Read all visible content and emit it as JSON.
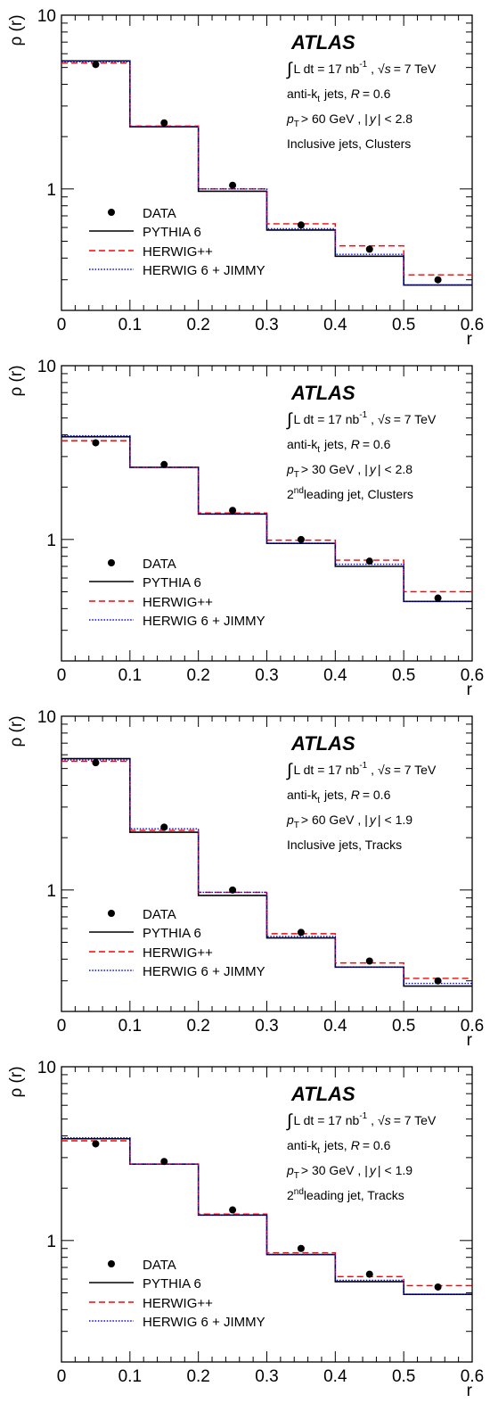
{
  "legend_labels": {
    "data": "DATA",
    "pythia": "PYTHIA 6",
    "herwigpp": "HERWIG++",
    "herwig": "HERWIG 6 + JIMMY"
  },
  "experiment": "ATLAS",
  "lumi_text": {
    "integral": "L dt = 17 nb",
    "exp": "-1",
    "sep": " ,",
    "sqrt_s": "s",
    "energy": "= 7 TeV"
  },
  "algo_text": {
    "prefix": "anti-k",
    "sub": "t",
    "jets": "jets,",
    "r_label": "R",
    "r_value": "= 0.6"
  },
  "colors": {
    "data": "#000000",
    "pythia": "#000000",
    "herwigpp": "#ff0000",
    "herwig": "#0000ff"
  },
  "chart_data": [
    {
      "type": "line",
      "title": "",
      "xlabel": "r",
      "ylabel": "ρ (r)",
      "xlim": [
        0,
        0.6
      ],
      "ylim": [
        0.2,
        10
      ],
      "yscale": "log",
      "xticks": [
        "0",
        "0.1",
        "0.2",
        "0.3",
        "0.4",
        "0.5",
        "0.6"
      ],
      "yticks": [
        "1",
        "10"
      ],
      "legend_position": "bottom-left",
      "cuts": {
        "pt": "> 60 GeV ,",
        "y": "< 2.8"
      },
      "selection": "Inclusive jets, Clusters",
      "bin_edges": [
        0,
        0.1,
        0.2,
        0.3,
        0.4,
        0.5,
        0.6
      ],
      "series": [
        {
          "name": "DATA",
          "style": "points",
          "x": [
            0.05,
            0.15,
            0.25,
            0.35,
            0.45,
            0.55
          ],
          "values": [
            5.2,
            2.4,
            1.05,
            0.62,
            0.45,
            0.3
          ]
        },
        {
          "name": "PYTHIA 6",
          "style": "solid",
          "values": [
            5.45,
            2.28,
            0.97,
            0.58,
            0.41,
            0.28
          ]
        },
        {
          "name": "HERWIG++",
          "style": "dashed",
          "values": [
            5.3,
            2.3,
            1.0,
            0.63,
            0.47,
            0.32
          ]
        },
        {
          "name": "HERWIG 6 + JIMMY",
          "style": "dotted",
          "values": [
            5.4,
            2.28,
            1.0,
            0.59,
            0.42,
            0.28
          ]
        }
      ]
    },
    {
      "type": "line",
      "title": "",
      "xlabel": "r",
      "ylabel": "ρ (r)",
      "xlim": [
        0,
        0.6
      ],
      "ylim": [
        0.2,
        10
      ],
      "yscale": "log",
      "xticks": [
        "0",
        "0.1",
        "0.2",
        "0.3",
        "0.4",
        "0.5",
        "0.6"
      ],
      "yticks": [
        "1",
        "10"
      ],
      "legend_position": "bottom-left",
      "cuts": {
        "pt": "> 30 GeV ,",
        "y": "< 2.8"
      },
      "selection": "leading jet, Clusters",
      "selection_prefix": "2",
      "selection_sup": "nd",
      "bin_edges": [
        0,
        0.1,
        0.2,
        0.3,
        0.4,
        0.5,
        0.6
      ],
      "series": [
        {
          "name": "DATA",
          "style": "points",
          "x": [
            0.05,
            0.15,
            0.25,
            0.35,
            0.45,
            0.55
          ],
          "values": [
            3.6,
            2.7,
            1.47,
            1.0,
            0.75,
            0.46
          ]
        },
        {
          "name": "PYTHIA 6",
          "style": "solid",
          "values": [
            3.9,
            2.6,
            1.4,
            0.95,
            0.7,
            0.44
          ]
        },
        {
          "name": "HERWIG++",
          "style": "dashed",
          "values": [
            3.7,
            2.6,
            1.42,
            0.99,
            0.76,
            0.5
          ]
        },
        {
          "name": "HERWIG 6 + JIMMY",
          "style": "dotted",
          "values": [
            3.95,
            2.6,
            1.4,
            0.95,
            0.72,
            0.44
          ]
        }
      ]
    },
    {
      "type": "line",
      "title": "",
      "xlabel": "r",
      "ylabel": "ρ (r)",
      "xlim": [
        0,
        0.6
      ],
      "ylim": [
        0.2,
        10
      ],
      "yscale": "log",
      "xticks": [
        "0",
        "0.1",
        "0.2",
        "0.3",
        "0.4",
        "0.5",
        "0.6"
      ],
      "yticks": [
        "1",
        "10"
      ],
      "legend_position": "bottom-left",
      "cuts": {
        "pt": "> 60 GeV ,",
        "y": "< 1.9"
      },
      "selection": "Inclusive jets, Tracks",
      "bin_edges": [
        0,
        0.1,
        0.2,
        0.3,
        0.4,
        0.5,
        0.6
      ],
      "series": [
        {
          "name": "DATA",
          "style": "points",
          "x": [
            0.05,
            0.15,
            0.25,
            0.35,
            0.45,
            0.55
          ],
          "values": [
            5.4,
            2.3,
            1.0,
            0.57,
            0.39,
            0.3
          ]
        },
        {
          "name": "PYTHIA 6",
          "style": "solid",
          "values": [
            5.7,
            2.15,
            0.93,
            0.53,
            0.36,
            0.28
          ]
        },
        {
          "name": "HERWIG++",
          "style": "dashed",
          "values": [
            5.5,
            2.2,
            0.97,
            0.56,
            0.38,
            0.31
          ]
        },
        {
          "name": "HERWIG 6 + JIMMY",
          "style": "dotted",
          "values": [
            5.6,
            2.25,
            0.97,
            0.54,
            0.36,
            0.29
          ]
        }
      ]
    },
    {
      "type": "line",
      "title": "",
      "xlabel": "r",
      "ylabel": "ρ (r)",
      "xlim": [
        0,
        0.6
      ],
      "ylim": [
        0.2,
        10
      ],
      "yscale": "log",
      "xticks": [
        "0",
        "0.1",
        "0.2",
        "0.3",
        "0.4",
        "0.5",
        "0.6"
      ],
      "yticks": [
        "1",
        "10"
      ],
      "legend_position": "bottom-left",
      "cuts": {
        "pt": "> 30 GeV ,",
        "y": "< 1.9"
      },
      "selection": "leading jet, Tracks",
      "selection_prefix": "2",
      "selection_sup": "nd",
      "bin_edges": [
        0,
        0.1,
        0.2,
        0.3,
        0.4,
        0.5,
        0.6
      ],
      "series": [
        {
          "name": "DATA",
          "style": "points",
          "x": [
            0.05,
            0.15,
            0.25,
            0.35,
            0.45,
            0.55
          ],
          "values": [
            3.6,
            2.85,
            1.5,
            0.9,
            0.64,
            0.54
          ]
        },
        {
          "name": "PYTHIA 6",
          "style": "solid",
          "values": [
            3.85,
            2.75,
            1.4,
            0.83,
            0.58,
            0.49
          ]
        },
        {
          "name": "HERWIG++",
          "style": "dashed",
          "values": [
            3.75,
            2.75,
            1.42,
            0.85,
            0.62,
            0.55
          ]
        },
        {
          "name": "HERWIG 6 + JIMMY",
          "style": "dotted",
          "values": [
            3.9,
            2.75,
            1.4,
            0.83,
            0.59,
            0.49
          ]
        }
      ]
    }
  ]
}
